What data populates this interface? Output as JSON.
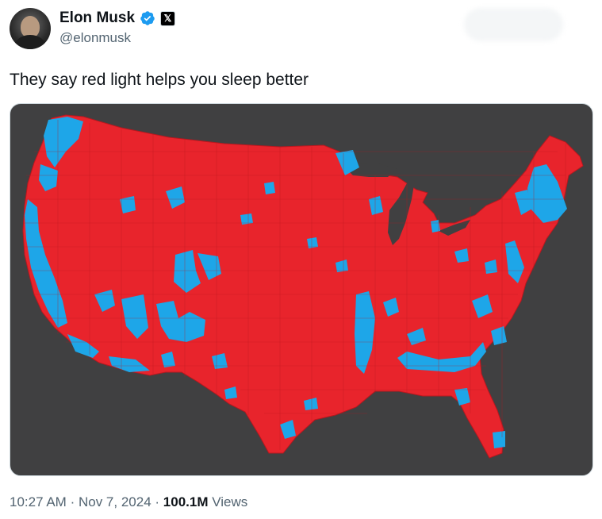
{
  "author": {
    "name": "Elon Musk",
    "handle": "@elonmusk",
    "verified_color": "#1d9bf0",
    "affiliation_badge": "𝕏"
  },
  "tweet": {
    "text": "They say red light helps you sleep better"
  },
  "map": {
    "background_color": "#404041",
    "republican_color": "#e8242c",
    "democrat_color": "#1ea6e8"
  },
  "meta": {
    "time": "10:27 AM",
    "separator": "·",
    "date": "Nov 7, 2024",
    "views_count": "100.1M",
    "views_label": "Views"
  }
}
